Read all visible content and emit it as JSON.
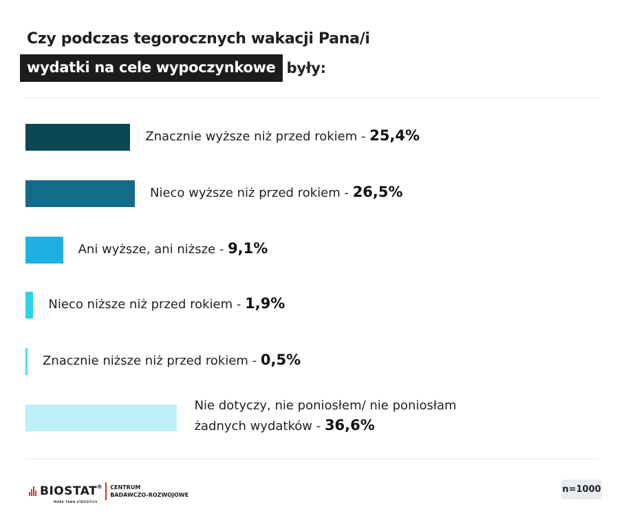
{
  "title": {
    "line1": "Czy podczas tegorocznych wakacji Pana/i",
    "highlight": "wydatki na cele wypoczynkowe",
    "suffix": "były:"
  },
  "chart_data": {
    "type": "bar",
    "orientation": "horizontal",
    "categories": [
      "Znacznie wyższe niż przed rokiem",
      "Nieco wyższe niż przed rokiem",
      "Ani wyższe, ani niższe",
      "Nieco niższe niż przed rokiem",
      "Znacznie niższe niż przed rokiem",
      "Nie dotyczy, nie poniosłem/ nie poniosłam żadnych wydatków"
    ],
    "values": [
      25.4,
      26.5,
      9.1,
      1.9,
      0.5,
      36.6
    ],
    "value_labels": [
      "25,4%",
      "26,5%",
      "9,1%",
      "1,9%",
      "0,5%",
      "36,6%"
    ],
    "label_lines": [
      [
        "Znacznie wyższe niż przed rokiem"
      ],
      [
        "Nieco wyższe niż przed rokiem"
      ],
      [
        "Ani wyższe, ani niższe"
      ],
      [
        "Nieco niższe niż przed rokiem"
      ],
      [
        "Znacznie niższe niż przed rokiem"
      ],
      [
        "Nie dotyczy, nie poniosłem/ nie poniosłam",
        "żadnych wydatków"
      ]
    ],
    "colors": [
      "#0b4755",
      "#146b8a",
      "#1fb0e3",
      "#2ed2ea",
      "#56daf2",
      "#bdf0f7"
    ],
    "title": "Czy podczas tegorocznych wakacji Pana/i wydatki na cele wypoczynkowe były:",
    "unit": "%",
    "grid": false,
    "legend": "none"
  },
  "footer": {
    "logo_text": "BIOSTAT",
    "logo_reg": "®",
    "logo_tagline": "MORE THAN STATISTICS",
    "logo_sub_line1": "CENTRUM",
    "logo_sub_line2": "BADAWCZO-ROZWOJOWE",
    "sample_size": "n=1000"
  }
}
